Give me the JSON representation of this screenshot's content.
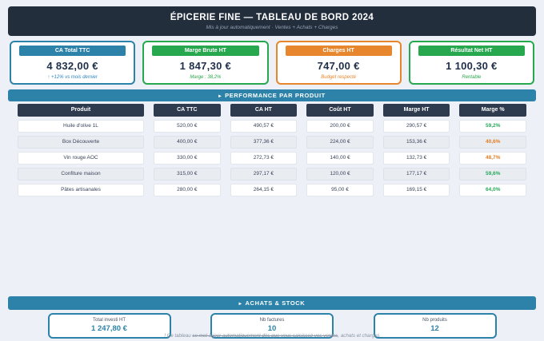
{
  "header": {
    "title": "ÉPICERIE FINE — TABLEAU DE BORD 2024",
    "subtitle": "Mis à jour automatiquement · Ventes + Achats + Charges"
  },
  "kpis": [
    {
      "label": "CA Total TTC",
      "value": "4 832,00 €",
      "note": "↑ +12% vs mois dernier"
    },
    {
      "label": "Marge Brute HT",
      "value": "1 847,30 €",
      "note": "Marge : 38,2%"
    },
    {
      "label": "Charges HT",
      "value": "747,00 €",
      "note": "Budget respecté"
    },
    {
      "label": "Résultat Net HT",
      "value": "1 100,30 €",
      "note": "Rentable"
    }
  ],
  "sections": {
    "arrow": "▸",
    "performance_label": "PERFORMANCE PAR PRODUIT",
    "achats_label": "ACHATS & STOCK"
  },
  "table": {
    "columns": [
      "Produit",
      "CA TTC",
      "CA HT",
      "Coût HT",
      "Marge HT",
      "Marge %"
    ],
    "rows": [
      {
        "produit": "Huile d'olive 1L",
        "ca_ttc": "520,00 €",
        "ca_ht": "490,57 €",
        "cout_ht": "200,00 €",
        "marge_ht": "290,57 €",
        "marge_pct": "59,2%",
        "marge_tone": "green"
      },
      {
        "produit": "Box Découverte",
        "ca_ttc": "400,00 €",
        "ca_ht": "377,36 €",
        "cout_ht": "224,00 €",
        "marge_ht": "153,36 €",
        "marge_pct": "40,6%",
        "marge_tone": "orange"
      },
      {
        "produit": "Vin rouge AOC",
        "ca_ttc": "330,00 €",
        "ca_ht": "272,73 €",
        "cout_ht": "140,00 €",
        "marge_ht": "132,73 €",
        "marge_pct": "48,7%",
        "marge_tone": "orange"
      },
      {
        "produit": "Confiture maison",
        "ca_ttc": "315,00 €",
        "ca_ht": "297,17 €",
        "cout_ht": "120,00 €",
        "marge_ht": "177,17 €",
        "marge_pct": "59,6%",
        "marge_tone": "green"
      },
      {
        "produit": "Pâtes artisanales",
        "ca_ttc": "280,00 €",
        "ca_ht": "264,15 €",
        "cout_ht": "95,00 €",
        "marge_ht": "169,15 €",
        "marge_pct": "64,0%",
        "marge_tone": "green"
      }
    ]
  },
  "stats": [
    {
      "label": "Total investi HT",
      "value": "1 247,80 €"
    },
    {
      "label": "Nb factures",
      "value": "10"
    },
    {
      "label": "Nb produits",
      "value": "12"
    }
  ],
  "footer": {
    "prefix": "! Ce tableau ",
    "struck": "se met à jour automatiquement dès que vous saisissez vos ventes",
    "suffix": ", achats et charges"
  },
  "colors": {
    "page_bg": "#edf1f7",
    "header_navy": "#232e3d",
    "table_header_navy": "#2e3a4d",
    "teal_accent": "#2c82a8",
    "green_accent": "#27a84e",
    "orange_accent": "#e8862d",
    "value_navy": "#20304a",
    "pct_green": "#27a85c",
    "pct_orange": "#e67e22"
  }
}
